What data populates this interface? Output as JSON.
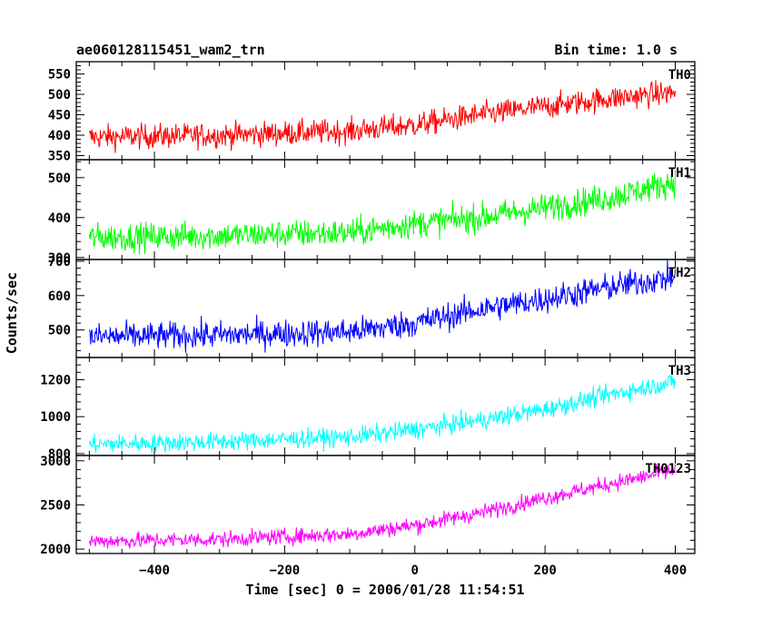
{
  "header": {
    "title": "ae060128115451_wam2_trn",
    "bin_time": "Bin time: 1.0 s"
  },
  "chart_data": {
    "type": "line",
    "title": "ae060128115451_wam2_trn",
    "subtitle": "Bin time: 1.0 s",
    "xlabel": "Time [sec] 0 = 2006/01/28 11:54:51",
    "ylabel": "Counts/sec",
    "xlim": [
      -520,
      430
    ],
    "x_ticks": [
      -400,
      -200,
      0,
      200,
      400
    ],
    "x_tick_labels": [
      "−400",
      "−200",
      "0",
      "200",
      "400"
    ],
    "x_range": [
      -500,
      400
    ],
    "panels": [
      {
        "name": "TH0",
        "color": "#ff0000",
        "ylim": [
          340,
          580
        ],
        "y_ticks": [
          350,
          400,
          450,
          500,
          550
        ],
        "trend": [
          [
            -500,
            395
          ],
          [
            -300,
            400
          ],
          [
            -100,
            410
          ],
          [
            0,
            425
          ],
          [
            100,
            450
          ],
          [
            200,
            470
          ],
          [
            300,
            490
          ],
          [
            400,
            505
          ]
        ],
        "noise_amplitude": 30
      },
      {
        "name": "TH1",
        "color": "#00ff00",
        "ylim": [
          295,
          545
        ],
        "y_ticks": [
          300,
          400,
          500
        ],
        "trend": [
          [
            -500,
            350
          ],
          [
            -300,
            355
          ],
          [
            -100,
            362
          ],
          [
            0,
            385
          ],
          [
            100,
            400
          ],
          [
            200,
            425
          ],
          [
            300,
            450
          ],
          [
            400,
            490
          ]
        ],
        "noise_amplitude": 35
      },
      {
        "name": "TH2",
        "color": "#0000ff",
        "ylim": [
          420,
          705
        ],
        "y_ticks": [
          500,
          600,
          700
        ],
        "trend": [
          [
            -500,
            480
          ],
          [
            -300,
            485
          ],
          [
            -100,
            495
          ],
          [
            0,
            520
          ],
          [
            100,
            560
          ],
          [
            200,
            590
          ],
          [
            300,
            625
          ],
          [
            400,
            655
          ]
        ],
        "noise_amplitude": 40
      },
      {
        "name": "TH3",
        "color": "#00ffff",
        "ylim": [
          790,
          1320
        ],
        "y_ticks": [
          800,
          1000,
          1200
        ],
        "trend": [
          [
            -500,
            850
          ],
          [
            -300,
            865
          ],
          [
            -100,
            890
          ],
          [
            0,
            930
          ],
          [
            100,
            980
          ],
          [
            200,
            1040
          ],
          [
            300,
            1120
          ],
          [
            400,
            1190
          ]
        ],
        "noise_amplitude": 50
      },
      {
        "name": "TH0123",
        "color": "#ff00ff",
        "ylim": [
          1950,
          3060
        ],
        "y_ticks": [
          2000,
          2500,
          3000
        ],
        "trend": [
          [
            -500,
            2090
          ],
          [
            -300,
            2110
          ],
          [
            -100,
            2170
          ],
          [
            0,
            2270
          ],
          [
            100,
            2410
          ],
          [
            200,
            2580
          ],
          [
            300,
            2740
          ],
          [
            400,
            2890
          ]
        ],
        "noise_amplitude": 90
      }
    ],
    "grid": false,
    "legend": "none"
  }
}
